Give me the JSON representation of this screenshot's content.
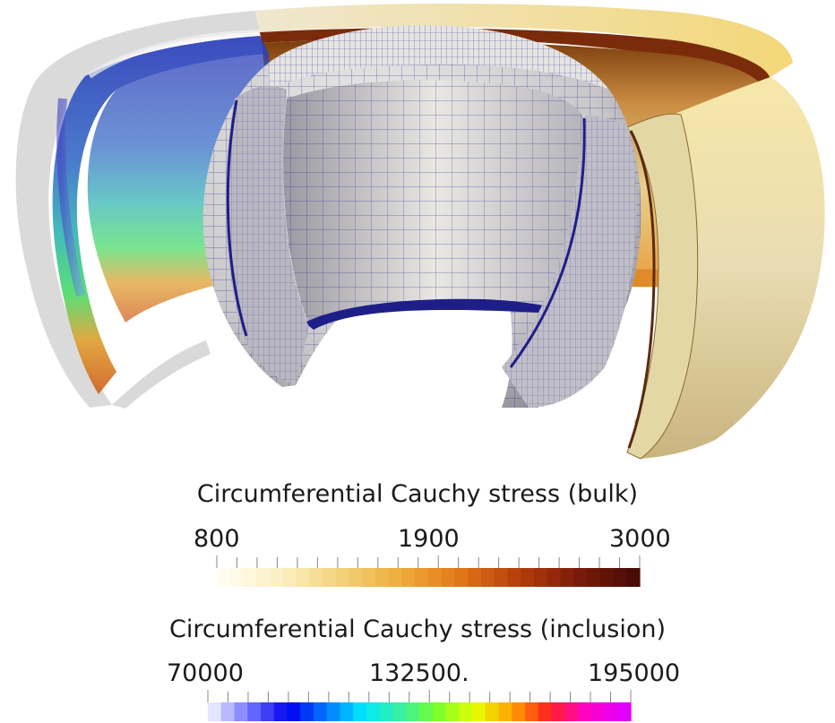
{
  "scene": {
    "description_icon": "spherical-shell-cutaway",
    "colors": {
      "bulk_light": "#f6eed2",
      "bulk_mid": "#e8cf86",
      "bulk_dark": "#c08a32",
      "mesh_line": "#2a2a9a",
      "mesh_face": "#d8d6d4",
      "ghost_shell": "#d6d6d6"
    }
  },
  "colorbars": [
    {
      "title": "Circumferential Cauchy stress (bulk)",
      "min_label": "800",
      "mid_label": "1900",
      "max_label": "3000",
      "min": 800,
      "mid": 1900,
      "max": 3000,
      "colormap": "heat",
      "stops": [
        "#fffdf2",
        "#fbefc0",
        "#f2d27a",
        "#eeae3c",
        "#e27918",
        "#b8400a",
        "#7e1c0a",
        "#4a0c06"
      ]
    },
    {
      "title": "Circumferential Cauchy stress (inclusion)",
      "min_label": "70000",
      "mid_label": "132500.",
      "max_label": "195000",
      "min": 70000,
      "mid": 132500,
      "max": 195000,
      "colormap": "rainbow",
      "stops": [
        "#e4e4ff",
        "#6a6aff",
        "#0000f0",
        "#0077ff",
        "#00e8ff",
        "#38f0a0",
        "#7cff2a",
        "#e8ff00",
        "#ffa000",
        "#ff2020",
        "#ff00c8",
        "#e000ff"
      ]
    }
  ]
}
